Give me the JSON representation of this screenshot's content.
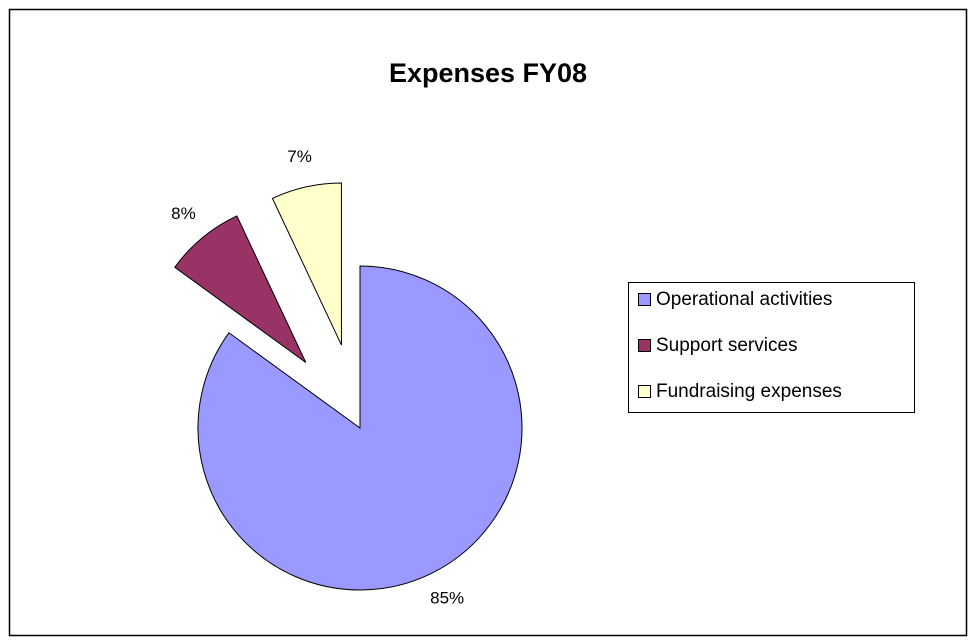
{
  "chart_data": {
    "type": "pie",
    "title": "Expenses FY08",
    "categories": [
      "Operational activities",
      "Support services",
      "Fundraising expenses"
    ],
    "values": [
      85,
      8,
      7
    ],
    "value_labels": [
      "85%",
      "8%",
      "7%"
    ],
    "colors": [
      "#9999ff",
      "#993366",
      "#ffffcc"
    ],
    "legend": "right"
  }
}
